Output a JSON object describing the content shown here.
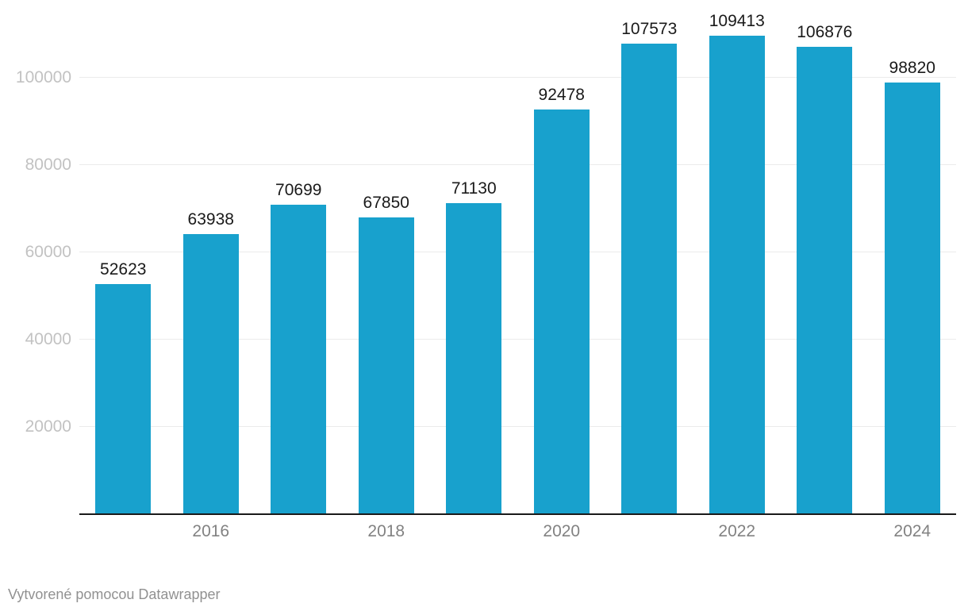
{
  "chart_data": {
    "type": "bar",
    "categories": [
      "2015",
      "2016",
      "2017",
      "2018",
      "2019",
      "2020",
      "2021",
      "2022",
      "2023",
      "2024"
    ],
    "values": [
      52623,
      63938,
      70699,
      67850,
      71130,
      92478,
      107573,
      109413,
      106876,
      98820
    ],
    "title": "",
    "xlabel": "",
    "ylabel": "",
    "ylim": [
      0,
      115000
    ],
    "y_ticks": [
      20000,
      40000,
      60000,
      80000,
      100000
    ],
    "x_tick_labels": [
      "2016",
      "2018",
      "2020",
      "2022",
      "2024"
    ],
    "grid": true,
    "legend": "none",
    "bar_color": "#18a1cd"
  },
  "footer": {
    "attribution": "Vytvorené pomocou Datawrapper"
  }
}
